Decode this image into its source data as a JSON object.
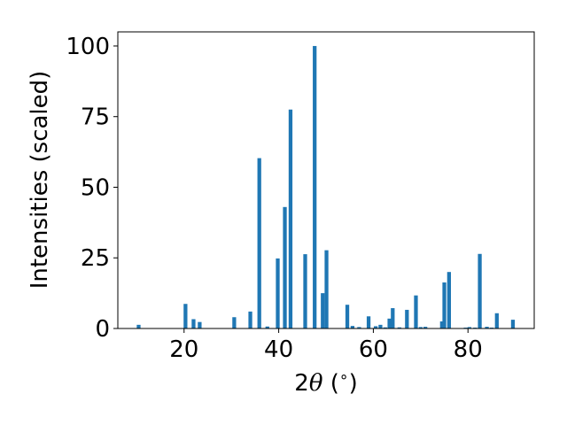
{
  "chart_data": {
    "type": "bar",
    "title": "",
    "xlabel_parts": {
      "prefix": "2",
      "symbol": "θ",
      "open_paren": " (",
      "degree": "∘",
      "close_paren": ")"
    },
    "ylabel": "Intensities (scaled)",
    "xlim": [
      6.0,
      94.0
    ],
    "ylim": [
      0,
      105
    ],
    "x_ticks": [
      20,
      40,
      60,
      80
    ],
    "y_ticks": [
      0,
      25,
      50,
      75,
      100
    ],
    "x_tick_labels": [
      "20",
      "40",
      "60",
      "80"
    ],
    "y_tick_labels": [
      "0",
      "25",
      "50",
      "75",
      "100"
    ],
    "grid": false,
    "legend": "none",
    "bar_color": "#1f77b4",
    "bar_width": 0.8,
    "x": [
      10.4,
      20.3,
      22.0,
      23.3,
      30.6,
      34.0,
      35.9,
      37.6,
      39.8,
      41.3,
      42.5,
      45.6,
      47.6,
      49.3,
      50.1,
      54.5,
      55.6,
      57.0,
      59.0,
      60.5,
      61.5,
      62.5,
      63.4,
      64.1,
      65.5,
      67.1,
      69.0,
      70.0,
      71.0,
      74.5,
      75.0,
      76.0,
      79.5,
      80.3,
      81.5,
      82.5,
      84.0,
      85.0,
      86.1,
      89.5
    ],
    "values": [
      1.3,
      8.7,
      3.3,
      2.3,
      4.0,
      6.0,
      60.3,
      0.7,
      24.8,
      43.0,
      77.5,
      26.3,
      100.0,
      12.5,
      27.7,
      8.4,
      0.9,
      0.5,
      4.3,
      0.8,
      1.3,
      0.4,
      3.5,
      7.2,
      0.4,
      6.6,
      11.7,
      0.5,
      0.6,
      2.5,
      16.3,
      20.0,
      0.3,
      0.5,
      0.3,
      26.4,
      0.6,
      0.3,
      5.4,
      3.1
    ]
  }
}
